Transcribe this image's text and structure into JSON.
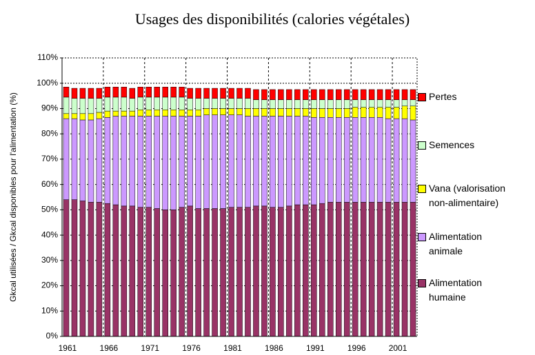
{
  "chart_data": {
    "type": "stacked_bar",
    "title": "Usages des disponibilités (calories végétales)",
    "y_label": "Gkcal utilisées / Gkcal disponibles pour l'alimentation (%)",
    "categories": [
      "1961",
      null,
      null,
      null,
      null,
      "1966",
      null,
      null,
      null,
      null,
      "1971",
      null,
      null,
      null,
      null,
      "1976",
      null,
      null,
      null,
      null,
      "1981",
      null,
      null,
      null,
      null,
      "1986",
      null,
      null,
      null,
      null,
      "1991",
      null,
      null,
      null,
      null,
      "1996",
      null,
      null,
      null,
      null,
      "2001",
      null,
      null
    ],
    "ylim": [
      0,
      110
    ],
    "yticks": [
      {
        "value": 0,
        "label": "0%"
      },
      {
        "value": 10,
        "label": "10%"
      },
      {
        "value": 20,
        "label": "20%"
      },
      {
        "value": 30,
        "label": "30%"
      },
      {
        "value": 40,
        "label": "40%"
      },
      {
        "value": 50,
        "label": "50%"
      },
      {
        "value": 60,
        "label": "60%"
      },
      {
        "value": 70,
        "label": "70%"
      },
      {
        "value": 80,
        "label": "80%"
      },
      {
        "value": 90,
        "label": "90%"
      },
      {
        "value": 100,
        "label": "100%"
      },
      {
        "value": 110,
        "label": "110%"
      }
    ],
    "grid": true,
    "series": [
      {
        "name": "Alimentation humaine",
        "color": "#993366",
        "values": [
          54,
          54,
          53.5,
          53,
          53,
          52.5,
          52,
          51.5,
          51.5,
          51,
          51,
          50.5,
          50,
          50,
          51,
          51.5,
          50.5,
          50.5,
          50.5,
          50.5,
          51,
          51,
          51,
          51.5,
          51.5,
          51,
          51,
          51.5,
          52,
          52,
          52,
          52.5,
          53,
          53,
          53,
          53,
          53,
          53,
          53,
          53,
          53,
          53,
          53
        ]
      },
      {
        "name": "Alimentation animale",
        "color": "#CC99FF",
        "values": [
          32,
          32,
          32,
          32.5,
          33,
          34,
          35,
          35.5,
          35.5,
          36,
          36,
          36.5,
          37,
          37,
          36,
          35.5,
          36.5,
          37,
          37,
          37,
          36.5,
          36.5,
          36,
          35.5,
          35.5,
          36,
          36,
          35.5,
          35,
          35,
          34.5,
          34,
          33.5,
          33.5,
          33.5,
          33.5,
          33.5,
          33.5,
          33.5,
          33,
          33,
          33,
          32.5
        ]
      },
      {
        "name": "Vana (valorisation non-alimentaire)",
        "color": "#FFFF00",
        "values": [
          2,
          2,
          2.5,
          2.5,
          2.5,
          2.5,
          2,
          2,
          2,
          2.5,
          2.5,
          2.5,
          2.5,
          2.5,
          2.5,
          2.5,
          2.5,
          2.5,
          2.5,
          2.5,
          2.5,
          2.5,
          3,
          3,
          3,
          3,
          3,
          3,
          3,
          3,
          3.5,
          3.5,
          3.5,
          3.5,
          3.5,
          4,
          4,
          4,
          4,
          4.5,
          4.5,
          5,
          5.5
        ]
      },
      {
        "name": "Semences",
        "color": "#CCFFCC",
        "values": [
          6.5,
          6,
          6,
          6,
          5.5,
          5.5,
          5.5,
          5.5,
          5,
          5,
          5,
          5,
          5,
          5,
          5,
          4.5,
          4.5,
          4,
          4,
          4,
          4,
          4,
          4,
          3.5,
          3.5,
          3.5,
          3.5,
          3.5,
          3.5,
          3.5,
          3.5,
          3.5,
          3.5,
          3.5,
          3.5,
          3,
          3,
          3,
          3,
          3,
          3,
          2.5,
          2.5
        ]
      },
      {
        "name": "Pertes",
        "color": "#FF0000",
        "values": [
          4,
          4,
          4,
          4,
          4,
          4,
          4,
          4,
          4,
          4,
          4,
          4,
          4,
          4,
          4,
          4,
          4,
          4,
          4,
          4,
          4,
          4,
          4,
          4,
          4,
          4,
          4,
          4,
          4,
          4,
          4,
          4,
          4,
          4,
          4,
          4,
          4,
          4,
          4,
          4,
          4,
          4,
          4
        ]
      }
    ]
  }
}
